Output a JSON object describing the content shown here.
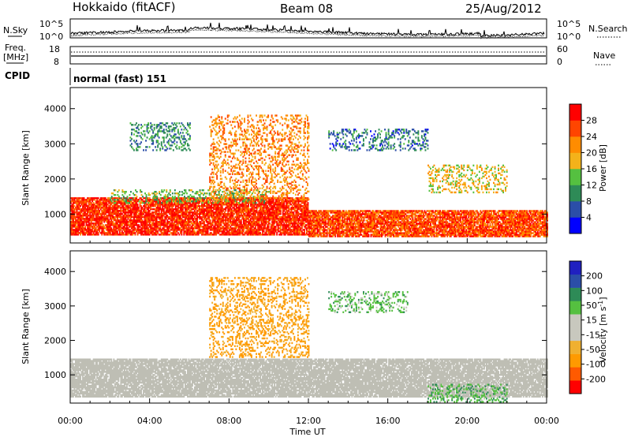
{
  "header": {
    "station": "Hokkaido (fitACF)",
    "beam": "Beam 08",
    "date": "25/Aug/2012"
  },
  "status_panels": {
    "nsky_label": "N.Sky",
    "nsky_ticks": [
      "10^5",
      "10^0"
    ],
    "nsearch_label": "N.Search",
    "nsearch_ticks": [
      "10^5",
      "10^0"
    ],
    "freq_label_line1": "Freq.",
    "freq_label_line2": "[MHz]",
    "freq_ticks": [
      "18",
      "8"
    ],
    "nave_label": "Nave",
    "nave_ticks": [
      "60",
      "0"
    ],
    "cpid_label": "CPID",
    "cpid_value": "normal (fast) 151"
  },
  "colors": {
    "power_scale": [
      "#0000ff",
      "#2b4ea8",
      "#2e8b57",
      "#55c040",
      "#f4b21a",
      "#ff8c00",
      "#ff4500",
      "#ff0000"
    ],
    "velocity_scale": [
      "#ff0000",
      "#ff5a00",
      "#ff9a00",
      "#f0b030",
      "#c8c8be",
      "#c8c8be",
      "#55c040",
      "#2e8b57",
      "#2b4ea8",
      "#2020c0"
    ],
    "ground_scatter": "#bebeb4"
  },
  "chart_data": [
    {
      "type": "heatmap",
      "name": "power",
      "xlabel": "",
      "ylabel": "Slant Range [km]",
      "xlim": [
        0,
        24
      ],
      "ylim": [
        180,
        4600
      ],
      "yticks": [
        1000,
        2000,
        3000,
        4000
      ],
      "colorbar": {
        "label": "Power [dB]",
        "ticks": [
          "4",
          "8",
          "12",
          "16",
          "20",
          "24",
          "28"
        ],
        "range": [
          0,
          32
        ]
      },
      "bands": [
        {
          "t0": 0.0,
          "t1": 12.0,
          "r0": 400,
          "r1": 1450,
          "value": 28
        },
        {
          "t0": 12.0,
          "t1": 24.0,
          "r0": 350,
          "r1": 1100,
          "value": 26
        },
        {
          "t0": 2.0,
          "t1": 10.0,
          "r0": 1300,
          "r1": 1700,
          "value": 14
        },
        {
          "t0": 7.0,
          "t1": 12.0,
          "r0": 1400,
          "r1": 3800,
          "value": 22
        },
        {
          "t0": 13.0,
          "t1": 18.0,
          "r0": 2800,
          "r1": 3400,
          "value": 8
        },
        {
          "t0": 18.0,
          "t1": 22.0,
          "r0": 1600,
          "r1": 2400,
          "value": 18
        },
        {
          "t0": 3.0,
          "t1": 6.0,
          "r0": 2800,
          "r1": 3600,
          "value": 10
        }
      ]
    },
    {
      "type": "heatmap",
      "name": "velocity",
      "xlabel": "Time UT",
      "ylabel": "Slant Range [km]",
      "xlim": [
        0,
        24
      ],
      "ylim": [
        180,
        4600
      ],
      "xticks": [
        "00:00",
        "04:00",
        "08:00",
        "12:00",
        "16:00",
        "20:00",
        "00:00"
      ],
      "yticks": [
        1000,
        2000,
        3000,
        4000
      ],
      "colorbar": {
        "label": "Velocity [m s",
        "label_sup": "-1",
        "label_end": "]",
        "ticks": [
          "200",
          "100",
          "50",
          "15",
          "-15",
          "-50",
          "-100",
          "-200"
        ],
        "range": [
          -250,
          250
        ]
      },
      "bands": [
        {
          "t0": 0.0,
          "t1": 24.0,
          "r0": 350,
          "r1": 1450,
          "value": 0
        },
        {
          "t0": 7.0,
          "t1": 12.0,
          "r0": 1500,
          "r1": 3800,
          "value": -60
        },
        {
          "t0": 13.0,
          "t1": 17.0,
          "r0": 2800,
          "r1": 3400,
          "value": 30
        },
        {
          "t0": 18.0,
          "t1": 22.0,
          "r0": 200,
          "r1": 700,
          "value": 40
        }
      ]
    }
  ]
}
